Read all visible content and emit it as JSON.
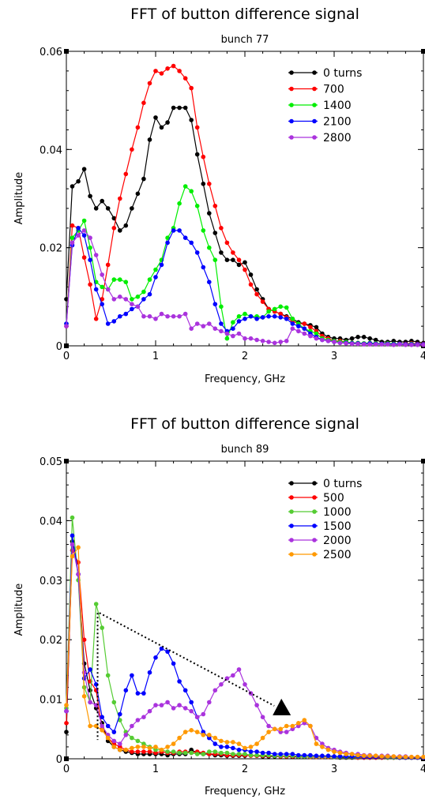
{
  "chart_data": [
    {
      "type": "line",
      "title": "FFT of button difference signal",
      "subtitle": "bunch 77",
      "xlabel": "Frequency, GHz",
      "ylabel": "Amplitude",
      "xlim": [
        0,
        4
      ],
      "ylim": [
        0,
        0.06
      ],
      "xticks": [
        0,
        1,
        2,
        3,
        4
      ],
      "xtick_labels": [
        "0",
        "1",
        "2",
        "3",
        "4"
      ],
      "yticks": [
        0,
        0.02,
        0.04,
        0.06
      ],
      "ytick_labels": [
        "0",
        "0.02",
        "0.04",
        "0.06"
      ],
      "grid": false,
      "legend_position": "top-right",
      "x": [
        0,
        0.0667,
        0.1333,
        0.2,
        0.2667,
        0.3333,
        0.4,
        0.4667,
        0.5333,
        0.6,
        0.6667,
        0.7333,
        0.8,
        0.8667,
        0.9333,
        1.0,
        1.0667,
        1.1333,
        1.2,
        1.2667,
        1.3333,
        1.4,
        1.4667,
        1.5333,
        1.6,
        1.6667,
        1.7333,
        1.8,
        1.8667,
        1.9333,
        2.0,
        2.0667,
        2.1333,
        2.2,
        2.2667,
        2.3333,
        2.4,
        2.4667,
        2.5333,
        2.6,
        2.6667,
        2.7333,
        2.8,
        2.8667,
        2.9333,
        3.0,
        3.0667,
        3.1333,
        3.2,
        3.2667,
        3.3333,
        3.4,
        3.4667,
        3.5333,
        3.6,
        3.6667,
        3.7333,
        3.8,
        3.8667,
        3.9333,
        4.0
      ],
      "series": [
        {
          "name": "0 turns",
          "color": "#000000",
          "values": [
            0.0095,
            0.0325,
            0.0335,
            0.036,
            0.0305,
            0.028,
            0.0295,
            0.028,
            0.026,
            0.0235,
            0.0245,
            0.028,
            0.031,
            0.034,
            0.042,
            0.0465,
            0.0445,
            0.0455,
            0.0485,
            0.0485,
            0.0485,
            0.046,
            0.039,
            0.033,
            0.027,
            0.023,
            0.019,
            0.0175,
            0.0175,
            0.0165,
            0.017,
            0.0145,
            0.0115,
            0.0095,
            0.0075,
            0.007,
            0.0065,
            0.006,
            0.0055,
            0.0048,
            0.0045,
            0.0042,
            0.0038,
            0.0025,
            0.0018,
            0.0015,
            0.0015,
            0.0012,
            0.0015,
            0.0018,
            0.0018,
            0.0015,
            0.0012,
            0.0008,
            0.0008,
            0.001,
            0.0008,
            0.0008,
            0.001,
            0.0008,
            0.0006
          ]
        },
        {
          "name": "700",
          "color": "#ff0000",
          "values": [
            0.004,
            0.0245,
            0.024,
            0.018,
            0.0125,
            0.0055,
            0.0095,
            0.0165,
            0.024,
            0.03,
            0.035,
            0.04,
            0.0445,
            0.0495,
            0.0535,
            0.056,
            0.0555,
            0.0565,
            0.057,
            0.056,
            0.0545,
            0.0525,
            0.0445,
            0.0385,
            0.033,
            0.0285,
            0.024,
            0.021,
            0.019,
            0.0175,
            0.0155,
            0.0125,
            0.0105,
            0.009,
            0.0075,
            0.007,
            0.0065,
            0.0058,
            0.005,
            0.0045,
            0.0045,
            0.0038,
            0.003,
            0.002,
            0.0015,
            0.001,
            0.001,
            0.0008,
            0.0006,
            0.0006,
            0.0005,
            0.0006,
            0.0005,
            0.0004,
            0.0005,
            0.0004,
            0.0004,
            0.0004,
            0.0005,
            0.0004,
            0.0004
          ]
        },
        {
          "name": "1400",
          "color": "#00ee00",
          "values": [
            0.0045,
            0.022,
            0.0235,
            0.0255,
            0.02,
            0.013,
            0.012,
            0.0115,
            0.0135,
            0.0135,
            0.013,
            0.0095,
            0.01,
            0.011,
            0.0135,
            0.0155,
            0.0175,
            0.022,
            0.024,
            0.029,
            0.0325,
            0.0315,
            0.0285,
            0.0235,
            0.02,
            0.0175,
            0.008,
            0.0015,
            0.0048,
            0.006,
            0.0065,
            0.006,
            0.006,
            0.0058,
            0.007,
            0.0075,
            0.008,
            0.0078,
            0.0055,
            0.0045,
            0.0035,
            0.003,
            0.0025,
            0.0015,
            0.0012,
            0.001,
            0.0008,
            0.0008,
            0.0006,
            0.0006,
            0.0005,
            0.0006,
            0.0005,
            0.0004,
            0.0005,
            0.0004,
            0.0004,
            0.0003,
            0.0004,
            0.0003,
            0.0003
          ]
        },
        {
          "name": "2100",
          "color": "#0000ff",
          "values": [
            0.0045,
            0.0205,
            0.024,
            0.0225,
            0.0175,
            0.0115,
            0.0085,
            0.0045,
            0.005,
            0.006,
            0.0065,
            0.0075,
            0.008,
            0.0095,
            0.0105,
            0.014,
            0.0165,
            0.021,
            0.0235,
            0.0235,
            0.022,
            0.021,
            0.019,
            0.016,
            0.013,
            0.0085,
            0.0045,
            0.003,
            0.0035,
            0.005,
            0.0055,
            0.006,
            0.0055,
            0.0058,
            0.006,
            0.006,
            0.0058,
            0.0055,
            0.0045,
            0.004,
            0.0035,
            0.0025,
            0.0018,
            0.0012,
            0.001,
            0.0008,
            0.0006,
            0.0006,
            0.0005,
            0.0005,
            0.0004,
            0.0005,
            0.0004,
            0.0004,
            0.0004,
            0.0003,
            0.0004,
            0.0003,
            0.0003,
            0.0003,
            0.0003
          ]
        },
        {
          "name": "2800",
          "color": "#aa33dd",
          "values": [
            0.004,
            0.021,
            0.0225,
            0.0235,
            0.022,
            0.0185,
            0.0145,
            0.0115,
            0.0095,
            0.01,
            0.0095,
            0.0085,
            0.008,
            0.006,
            0.006,
            0.0055,
            0.0065,
            0.006,
            0.006,
            0.006,
            0.0065,
            0.0035,
            0.0045,
            0.004,
            0.0045,
            0.0035,
            0.003,
            0.0025,
            0.002,
            0.0025,
            0.0015,
            0.0015,
            0.0012,
            0.001,
            0.0008,
            0.0006,
            0.0008,
            0.001,
            0.0035,
            0.003,
            0.0025,
            0.002,
            0.0015,
            0.0012,
            0.001,
            0.0008,
            0.0006,
            0.0005,
            0.0004,
            0.0004,
            0.0003,
            0.0003,
            0.0003,
            0.0003,
            0.0003,
            0.0002,
            0.0003,
            0.0002,
            0.0002,
            0.0002,
            0.0002
          ]
        }
      ]
    },
    {
      "type": "line",
      "title": "FFT of button difference signal",
      "subtitle": "bunch 89",
      "xlabel": "Frequency, GHz",
      "ylabel": "Amplitude",
      "xlim": [
        0,
        4
      ],
      "ylim": [
        0,
        0.05
      ],
      "xticks": [
        0,
        1,
        2,
        3,
        4
      ],
      "xtick_labels": [
        "0",
        "1",
        "2",
        "3",
        "4"
      ],
      "yticks": [
        0,
        0.01,
        0.02,
        0.03,
        0.04,
        0.05
      ],
      "ytick_labels": [
        "0",
        "0.01",
        "0.02",
        "0.03",
        "0.04",
        "0.05"
      ],
      "grid": false,
      "legend_position": "top-right",
      "x": [
        0,
        0.0667,
        0.1333,
        0.2,
        0.2667,
        0.3333,
        0.4,
        0.4667,
        0.5333,
        0.6,
        0.6667,
        0.7333,
        0.8,
        0.8667,
        0.9333,
        1.0,
        1.0667,
        1.1333,
        1.2,
        1.2667,
        1.3333,
        1.4,
        1.4667,
        1.5333,
        1.6,
        1.6667,
        1.7333,
        1.8,
        1.8667,
        1.9333,
        2.0,
        2.0667,
        2.1333,
        2.2,
        2.2667,
        2.3333,
        2.4,
        2.4667,
        2.5333,
        2.6,
        2.6667,
        2.7333,
        2.8,
        2.8667,
        2.9333,
        3.0,
        3.0667,
        3.1333,
        3.2,
        3.2667,
        3.3333,
        3.4,
        3.4667,
        3.5333,
        3.6,
        3.6667,
        3.7333,
        3.8,
        3.8667,
        3.9333,
        4.0
      ],
      "series": [
        {
          "name": "0 turns",
          "color": "#000000",
          "values": [
            0.0045,
            0.0365,
            0.031,
            0.016,
            0.0115,
            0.0085,
            0.006,
            0.003,
            0.002,
            0.0015,
            0.0012,
            0.001,
            0.0008,
            0.0008,
            0.0008,
            0.0008,
            0.0008,
            0.0006,
            0.0008,
            0.0008,
            0.0008,
            0.0015,
            0.001,
            0.0008,
            0.0008,
            0.0006,
            0.0006,
            0.0005,
            0.0005,
            0.0005,
            0.0005,
            0.0006,
            0.0005,
            0.0004,
            0.0004,
            0.0004,
            0.0004,
            0.0004,
            0.0003,
            0.0003,
            0.0003,
            0.0003,
            0.0003,
            0.0003,
            0.0003,
            0.0003,
            0.0002,
            0.0002,
            0.0002,
            0.0002,
            0.0002,
            0.0002,
            0.0002,
            0.0002,
            0.0002,
            0.0002,
            0.0002,
            0.0002,
            0.0002,
            0.0002,
            0.0002
          ]
        },
        {
          "name": "500",
          "color": "#ff0000",
          "values": [
            0.006,
            0.035,
            0.033,
            0.02,
            0.013,
            0.0115,
            0.005,
            0.0035,
            0.0025,
            0.002,
            0.0015,
            0.0012,
            0.0012,
            0.0012,
            0.0012,
            0.001,
            0.0012,
            0.001,
            0.001,
            0.0012,
            0.0012,
            0.001,
            0.0012,
            0.001,
            0.0008,
            0.0008,
            0.0008,
            0.0006,
            0.0006,
            0.0006,
            0.0006,
            0.0005,
            0.0005,
            0.0005,
            0.0005,
            0.0005,
            0.0004,
            0.0004,
            0.0004,
            0.0004,
            0.0004,
            0.0003,
            0.0003,
            0.0003,
            0.0003,
            0.0003,
            0.0003,
            0.0003,
            0.0003,
            0.0002,
            0.0002,
            0.0002,
            0.0002,
            0.0002,
            0.0002,
            0.0002,
            0.0002,
            0.0002,
            0.0002,
            0.0002,
            0.0002
          ]
        },
        {
          "name": "1000",
          "color": "#55cc33",
          "values": [
            0.0085,
            0.0405,
            0.03,
            0.012,
            0.0095,
            0.026,
            0.022,
            0.014,
            0.0095,
            0.0065,
            0.0045,
            0.0035,
            0.003,
            0.0025,
            0.002,
            0.0015,
            0.0015,
            0.0012,
            0.0012,
            0.001,
            0.001,
            0.001,
            0.0008,
            0.0008,
            0.0012,
            0.0012,
            0.001,
            0.001,
            0.0008,
            0.0008,
            0.0008,
            0.0006,
            0.0006,
            0.0006,
            0.0006,
            0.0005,
            0.0005,
            0.0005,
            0.0005,
            0.0004,
            0.0004,
            0.0004,
            0.0004,
            0.0004,
            0.0004,
            0.0003,
            0.0003,
            0.0003,
            0.0003,
            0.0003,
            0.0003,
            0.0003,
            0.0003,
            0.0003,
            0.0002,
            0.0002,
            0.0002,
            0.0002,
            0.0002,
            0.0002,
            0.0002
          ]
        },
        {
          "name": "1500",
          "color": "#0000ff",
          "values": [
            0.008,
            0.0375,
            0.031,
            0.0135,
            0.015,
            0.0125,
            0.007,
            0.0055,
            0.0045,
            0.0075,
            0.0115,
            0.014,
            0.011,
            0.011,
            0.0145,
            0.017,
            0.0185,
            0.018,
            0.016,
            0.013,
            0.0115,
            0.0095,
            0.007,
            0.0045,
            0.0035,
            0.0025,
            0.002,
            0.002,
            0.0018,
            0.0015,
            0.0015,
            0.0012,
            0.0012,
            0.001,
            0.001,
            0.0008,
            0.0008,
            0.0008,
            0.0008,
            0.0006,
            0.0006,
            0.0006,
            0.0005,
            0.0005,
            0.0005,
            0.0004,
            0.0004,
            0.0004,
            0.0004,
            0.0004,
            0.0003,
            0.0003,
            0.0003,
            0.0003,
            0.0003,
            0.0003,
            0.0002,
            0.0002,
            0.0002,
            0.0002,
            0.0002
          ]
        },
        {
          "name": "2000",
          "color": "#aa33dd",
          "values": [
            0.008,
            0.036,
            0.031,
            0.0145,
            0.0095,
            0.009,
            0.0055,
            0.004,
            0.003,
            0.0025,
            0.004,
            0.0055,
            0.0065,
            0.007,
            0.008,
            0.009,
            0.009,
            0.0095,
            0.0085,
            0.009,
            0.0085,
            0.008,
            0.007,
            0.0075,
            0.0095,
            0.0115,
            0.0125,
            0.0135,
            0.014,
            0.015,
            0.0125,
            0.011,
            0.009,
            0.007,
            0.0055,
            0.005,
            0.0045,
            0.0045,
            0.005,
            0.0055,
            0.006,
            0.0055,
            0.0035,
            0.0025,
            0.0018,
            0.0015,
            0.0012,
            0.001,
            0.0008,
            0.0008,
            0.0006,
            0.0006,
            0.0005,
            0.0005,
            0.0005,
            0.0004,
            0.0004,
            0.0004,
            0.0003,
            0.0003,
            0.0003
          ]
        },
        {
          "name": "2500",
          "color": "#ff9900",
          "values": [
            0.009,
            0.034,
            0.0355,
            0.0105,
            0.0055,
            0.0055,
            0.0048,
            0.0035,
            0.002,
            0.0015,
            0.0015,
            0.0018,
            0.002,
            0.002,
            0.0018,
            0.002,
            0.0015,
            0.002,
            0.0025,
            0.0035,
            0.0045,
            0.0048,
            0.0045,
            0.004,
            0.004,
            0.0035,
            0.003,
            0.0028,
            0.0028,
            0.0025,
            0.0018,
            0.002,
            0.0025,
            0.0035,
            0.0045,
            0.005,
            0.005,
            0.0055,
            0.0055,
            0.006,
            0.0065,
            0.0055,
            0.0025,
            0.002,
            0.0015,
            0.0012,
            0.001,
            0.0008,
            0.0008,
            0.0006,
            0.0005,
            0.0005,
            0.0005,
            0.0004,
            0.0004,
            0.0004,
            0.0003,
            0.0003,
            0.0003,
            0.0003,
            0.0003
          ]
        }
      ],
      "annotation": {
        "type": "dotted-arrow",
        "from": [
          0.37,
          0.0245
        ],
        "to": [
          2.4,
          0.0085
        ],
        "vertical_x": 0.35,
        "vertical_ylim": [
          0.0045,
          0.0245
        ]
      }
    }
  ]
}
